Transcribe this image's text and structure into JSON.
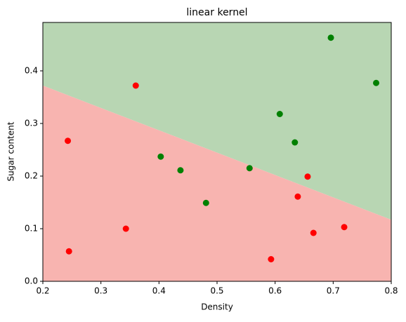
{
  "chart_data": {
    "type": "scatter",
    "title": "linear kernel",
    "x_label": "Density",
    "y_label": "Sugar content",
    "xlim": [
      0.2,
      0.8
    ],
    "ylim": [
      0,
      0.492
    ],
    "xticks": [
      0.2,
      0.3,
      0.4,
      0.5,
      0.6,
      0.7,
      0.8
    ],
    "yticks": [
      {
        "value": 0,
        "label": "0.0"
      },
      0.1,
      0.2,
      0.3,
      0.4
    ],
    "regions": [
      {
        "color": "#b8d6b3",
        "side": "above"
      },
      {
        "color": "#f8b4b0",
        "side": "below"
      }
    ],
    "boundary": {
      "x": [
        0.2,
        0.8
      ],
      "y": [
        0.372,
        0.117
      ]
    },
    "series": [
      {
        "color": "#ff0000",
        "x": [
          0.243,
          0.245,
          0.36,
          0.343,
          0.593,
          0.656,
          0.639,
          0.666,
          0.719
        ],
        "values": [
          0.267,
          0.057,
          0.372,
          0.1,
          0.042,
          0.199,
          0.161,
          0.092,
          0.103
        ]
      },
      {
        "color": "#008000",
        "x": [
          0.696,
          0.774,
          0.608,
          0.634,
          0.403,
          0.437,
          0.556,
          0.481
        ],
        "values": [
          0.463,
          0.377,
          0.318,
          0.264,
          0.237,
          0.211,
          0.215,
          0.149
        ]
      }
    ]
  }
}
